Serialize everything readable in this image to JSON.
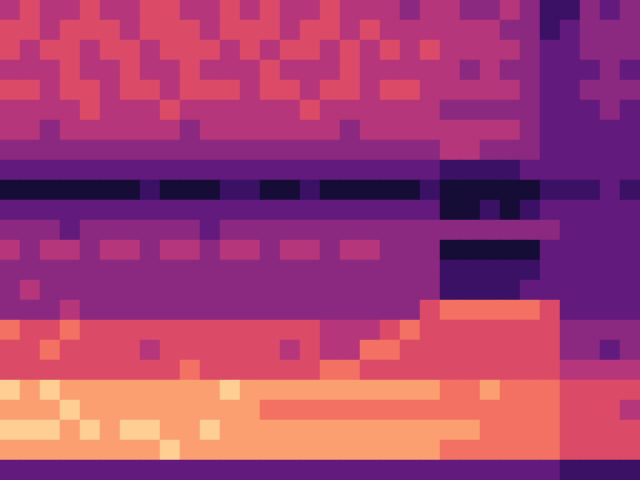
{
  "chart_data": {
    "type": "heatmap",
    "tick_labels": false,
    "color_range": [
      0,
      10
    ],
    "cells": [
      [
        5,
        6,
        5,
        5,
        6,
        5,
        5,
        6,
        6,
        5,
        5,
        6,
        5,
        6,
        5,
        5,
        6,
        5,
        5,
        5,
        4,
        5,
        5,
        4,
        4,
        5,
        4,
        2,
        2,
        4,
        3,
        4
      ],
      [
        6,
        6,
        5,
        6,
        6,
        6,
        5,
        6,
        6,
        6,
        5,
        6,
        6,
        6,
        5,
        6,
        6,
        5,
        6,
        5,
        5,
        5,
        5,
        5,
        5,
        4,
        4,
        2,
        3,
        4,
        4,
        4
      ],
      [
        6,
        5,
        6,
        6,
        5,
        6,
        6,
        5,
        6,
        6,
        6,
        5,
        6,
        5,
        6,
        6,
        5,
        6,
        5,
        6,
        5,
        6,
        5,
        5,
        5,
        5,
        4,
        3,
        3,
        4,
        4,
        4
      ],
      [
        5,
        5,
        5,
        6,
        5,
        5,
        6,
        5,
        5,
        6,
        5,
        5,
        5,
        6,
        5,
        5,
        5,
        6,
        5,
        5,
        5,
        5,
        5,
        4,
        5,
        4,
        4,
        3,
        3,
        3,
        4,
        3
      ],
      [
        6,
        6,
        5,
        6,
        6,
        5,
        6,
        6,
        5,
        6,
        6,
        6,
        5,
        6,
        6,
        5,
        6,
        6,
        5,
        6,
        6,
        5,
        5,
        5,
        5,
        5,
        4,
        3,
        3,
        4,
        4,
        4
      ],
      [
        5,
        5,
        5,
        5,
        6,
        5,
        5,
        5,
        6,
        5,
        5,
        5,
        5,
        5,
        5,
        6,
        5,
        5,
        5,
        5,
        5,
        5,
        4,
        4,
        4,
        4,
        4,
        3,
        3,
        3,
        4,
        3
      ],
      [
        5,
        5,
        4,
        5,
        5,
        5,
        5,
        5,
        5,
        4,
        5,
        5,
        5,
        5,
        5,
        5,
        5,
        4,
        5,
        5,
        5,
        5,
        5,
        5,
        5,
        5,
        4,
        3,
        3,
        3,
        3,
        3
      ],
      [
        4,
        4,
        4,
        4,
        4,
        4,
        4,
        4,
        4,
        4,
        4,
        4,
        4,
        4,
        4,
        4,
        4,
        4,
        4,
        4,
        4,
        4,
        5,
        5,
        4,
        4,
        4,
        3,
        3,
        3,
        3,
        3
      ],
      [
        3,
        3,
        3,
        3,
        3,
        3,
        3,
        3,
        3,
        3,
        3,
        3,
        3,
        3,
        3,
        3,
        3,
        3,
        3,
        3,
        3,
        3,
        2,
        2,
        2,
        2,
        3,
        3,
        3,
        3,
        3,
        3
      ],
      [
        1,
        1,
        1,
        1,
        1,
        1,
        1,
        2,
        1,
        1,
        1,
        2,
        2,
        1,
        1,
        2,
        1,
        1,
        1,
        1,
        1,
        2,
        1,
        1,
        1,
        1,
        1,
        2,
        2,
        2,
        3,
        2
      ],
      [
        3,
        3,
        3,
        3,
        3,
        3,
        3,
        3,
        3,
        3,
        3,
        3,
        3,
        3,
        3,
        3,
        3,
        3,
        3,
        3,
        3,
        3,
        1,
        1,
        2,
        1,
        2,
        3,
        3,
        3,
        3,
        3
      ],
      [
        4,
        4,
        4,
        3,
        4,
        4,
        4,
        4,
        4,
        4,
        3,
        4,
        4,
        4,
        4,
        4,
        4,
        4,
        4,
        4,
        4,
        4,
        4,
        4,
        4,
        4,
        4,
        4,
        3,
        3,
        3,
        3
      ],
      [
        5,
        4,
        5,
        5,
        4,
        5,
        5,
        4,
        5,
        5,
        4,
        5,
        5,
        4,
        5,
        5,
        4,
        5,
        5,
        4,
        4,
        4,
        1,
        1,
        1,
        1,
        1,
        3,
        3,
        3,
        3,
        3
      ],
      [
        4,
        4,
        4,
        4,
        4,
        4,
        4,
        4,
        4,
        4,
        4,
        4,
        4,
        4,
        4,
        4,
        4,
        4,
        4,
        4,
        4,
        4,
        2,
        2,
        2,
        2,
        2,
        3,
        3,
        3,
        3,
        3
      ],
      [
        4,
        5,
        4,
        4,
        4,
        4,
        4,
        4,
        4,
        4,
        4,
        4,
        4,
        4,
        4,
        4,
        4,
        4,
        4,
        4,
        4,
        4,
        2,
        2,
        2,
        2,
        3,
        3,
        3,
        3,
        3,
        3
      ],
      [
        4,
        4,
        4,
        5,
        4,
        4,
        4,
        4,
        4,
        4,
        4,
        4,
        4,
        4,
        4,
        4,
        4,
        4,
        4,
        4,
        4,
        6,
        7,
        7,
        7,
        7,
        7,
        6,
        3,
        3,
        3,
        3
      ],
      [
        7,
        6,
        6,
        7,
        6,
        6,
        6,
        6,
        6,
        6,
        6,
        6,
        6,
        6,
        6,
        6,
        5,
        5,
        5,
        6,
        7,
        6,
        6,
        6,
        6,
        6,
        6,
        6,
        4,
        4,
        4,
        4
      ],
      [
        6,
        6,
        7,
        6,
        6,
        6,
        6,
        5,
        6,
        6,
        6,
        6,
        6,
        6,
        5,
        6,
        5,
        5,
        7,
        7,
        6,
        6,
        6,
        6,
        6,
        6,
        6,
        6,
        4,
        4,
        3,
        4
      ],
      [
        6,
        6,
        6,
        6,
        6,
        6,
        6,
        6,
        6,
        7,
        6,
        6,
        6,
        6,
        6,
        6,
        7,
        7,
        6,
        6,
        6,
        6,
        6,
        6,
        6,
        6,
        6,
        6,
        5,
        5,
        5,
        5
      ],
      [
        9,
        8,
        9,
        8,
        8,
        8,
        8,
        8,
        8,
        8,
        8,
        9,
        8,
        8,
        8,
        8,
        8,
        8,
        8,
        8,
        8,
        8,
        7,
        7,
        8,
        7,
        7,
        7,
        6,
        6,
        6,
        6
      ],
      [
        8,
        8,
        8,
        9,
        8,
        8,
        8,
        8,
        8,
        8,
        8,
        8,
        8,
        7,
        7,
        7,
        7,
        7,
        7,
        7,
        7,
        7,
        7,
        7,
        7,
        7,
        7,
        7,
        6,
        6,
        6,
        5
      ],
      [
        9,
        9,
        9,
        8,
        9,
        8,
        9,
        9,
        8,
        8,
        9,
        8,
        8,
        8,
        8,
        8,
        8,
        8,
        8,
        8,
        8,
        8,
        8,
        8,
        7,
        7,
        7,
        7,
        6,
        6,
        6,
        6
      ],
      [
        8,
        8,
        8,
        8,
        8,
        8,
        8,
        8,
        9,
        8,
        8,
        8,
        8,
        8,
        8,
        8,
        8,
        8,
        8,
        8,
        8,
        8,
        7,
        7,
        7,
        7,
        7,
        7,
        6,
        6,
        6,
        6
      ],
      [
        3,
        3,
        3,
        3,
        3,
        3,
        3,
        3,
        3,
        3,
        3,
        3,
        3,
        3,
        3,
        3,
        3,
        3,
        3,
        3,
        3,
        3,
        3,
        3,
        3,
        3,
        3,
        3,
        2,
        2,
        2,
        2
      ]
    ]
  }
}
